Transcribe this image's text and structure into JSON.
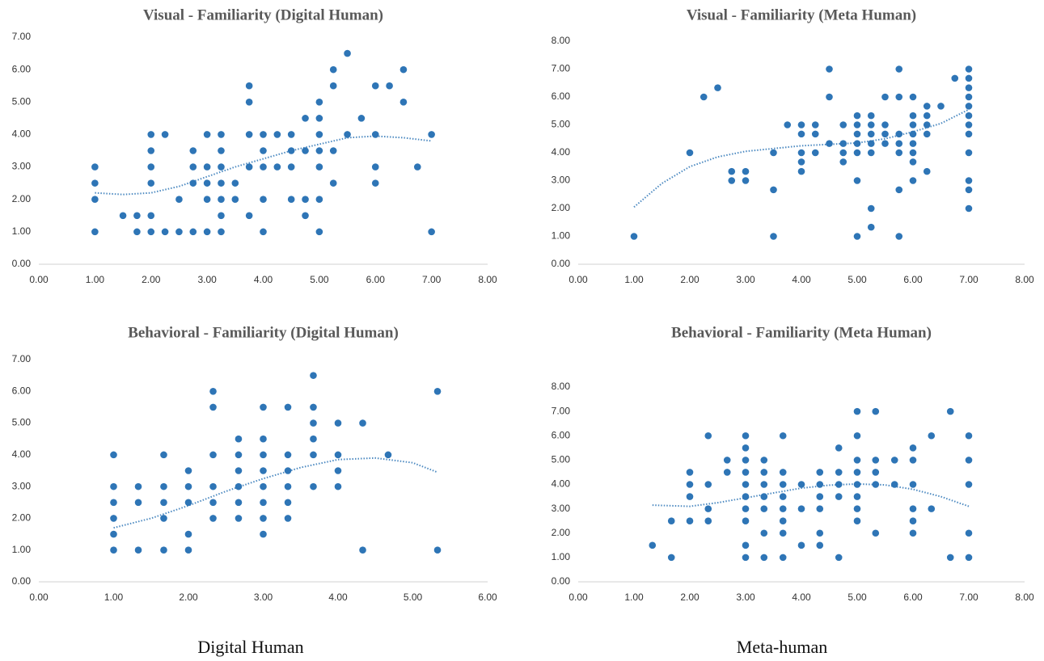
{
  "chart_data": [
    {
      "type": "scatter",
      "title": "Visual - Familiarity (Digital Human)",
      "color": "#2e75b6",
      "x": [
        1,
        1,
        1,
        1,
        1.5,
        1.75,
        1.75,
        2,
        2,
        2,
        2,
        2,
        2,
        2.25,
        2.25,
        2.5,
        2.5,
        2.75,
        2.75,
        2.75,
        2.75,
        3,
        3,
        3,
        3,
        3,
        3.25,
        3.25,
        3.25,
        3.25,
        3.25,
        3.25,
        3.25,
        3.5,
        3.5,
        3.75,
        3.75,
        3.75,
        3.75,
        3.75,
        4,
        4,
        4,
        4,
        4,
        4.25,
        4.25,
        4.5,
        4.5,
        4.5,
        4.5,
        4.75,
        4.75,
        4.75,
        4.75,
        5,
        5,
        5,
        5,
        5,
        5,
        5,
        5.25,
        5.25,
        5.25,
        5.25,
        5.5,
        5.5,
        5.75,
        6,
        6,
        6,
        6,
        6.25,
        6.5,
        6.5,
        6.75,
        7,
        7
      ],
      "values": [
        3,
        2.5,
        2,
        1,
        1.5,
        1.5,
        1,
        4,
        3.5,
        3,
        2.5,
        1.5,
        1,
        4,
        1,
        2,
        1,
        3.5,
        3,
        2.5,
        1,
        4,
        3,
        2.5,
        2,
        1,
        4,
        3.5,
        3,
        2.5,
        2,
        1.5,
        1,
        2.5,
        2,
        5.5,
        5,
        4,
        3,
        1.5,
        4,
        3.5,
        3,
        2,
        1,
        4,
        3,
        4,
        3.5,
        3,
        2,
        4.5,
        3.5,
        2,
        1.5,
        5,
        4.5,
        4,
        3.5,
        3,
        2,
        1,
        6,
        5.5,
        3.5,
        2.5,
        6.5,
        4,
        4.5,
        5.5,
        4,
        3,
        2.5,
        5.5,
        6,
        5,
        3,
        4,
        1
      ],
      "trendline": {
        "x": [
          1,
          1.5,
          2,
          2.5,
          3,
          3.5,
          4,
          4.5,
          5,
          5.5,
          6,
          6.5,
          7
        ],
        "values": [
          2.2,
          2.15,
          2.2,
          2.4,
          2.7,
          3.0,
          3.25,
          3.5,
          3.7,
          3.9,
          3.95,
          3.9,
          3.8
        ]
      },
      "xlim": [
        0,
        8
      ],
      "ylim": [
        0,
        7
      ],
      "xticks": [
        {
          "value": 0,
          "label": "0.00"
        },
        {
          "value": 1,
          "label": "1.00"
        },
        {
          "value": 2,
          "label": "2.00"
        },
        {
          "value": 3,
          "label": "3.00"
        },
        {
          "value": 4,
          "label": "4.00"
        },
        {
          "value": 5,
          "label": "5.00"
        },
        {
          "value": 6,
          "label": "6.00"
        },
        {
          "value": 7,
          "label": "7.00"
        },
        {
          "value": 8,
          "label": "8.00"
        }
      ],
      "yticks": [
        {
          "value": 0,
          "label": "0.00"
        },
        {
          "value": 1,
          "label": "1.00"
        },
        {
          "value": 2,
          "label": "2.00"
        },
        {
          "value": 3,
          "label": "3.00"
        },
        {
          "value": 4,
          "label": "4.00"
        },
        {
          "value": 5,
          "label": "5.00"
        },
        {
          "value": 6,
          "label": "6.00"
        },
        {
          "value": 7,
          "label": "7.00"
        }
      ]
    },
    {
      "type": "scatter",
      "title": "Visual - Familiarity (Meta Human)",
      "color": "#2e75b6",
      "x": [
        1,
        2,
        2.25,
        2.5,
        2.75,
        2.75,
        3,
        3,
        3.5,
        3.5,
        3.5,
        3.75,
        4,
        4,
        4,
        4,
        4,
        4.25,
        4.25,
        4.25,
        4.5,
        4.5,
        4.5,
        4.75,
        4.75,
        4.75,
        4.75,
        5,
        5,
        5,
        5,
        5,
        5,
        5,
        5.25,
        5.25,
        5.25,
        5.25,
        5.25,
        5.25,
        5.25,
        5.5,
        5.5,
        5.5,
        5.5,
        5.75,
        5.75,
        5.75,
        5.75,
        5.75,
        5.75,
        5.75,
        6,
        6,
        6,
        6,
        6,
        6,
        6,
        6,
        6.25,
        6.25,
        6.25,
        6.25,
        6.25,
        6.5,
        6.75,
        7,
        7,
        7,
        7,
        7,
        7,
        7,
        7,
        7,
        7,
        7,
        7
      ],
      "values": [
        1,
        4,
        6,
        6.33,
        3.33,
        3,
        3.33,
        3,
        4,
        2.67,
        1,
        5,
        5,
        4.67,
        4,
        3.67,
        3.33,
        5,
        4.67,
        4,
        7,
        6,
        4.33,
        5,
        4.33,
        4,
        3.67,
        5.33,
        5,
        4.67,
        4.33,
        4,
        3,
        1,
        5.33,
        5,
        4.67,
        4.33,
        4,
        2,
        1.33,
        6,
        5,
        4.67,
        4.33,
        7,
        6,
        4.67,
        4.33,
        4,
        2.67,
        1,
        6,
        5.33,
        5,
        4.67,
        4.33,
        4,
        3.67,
        3,
        5.67,
        5.33,
        5,
        4.67,
        3.33,
        5.67,
        6.67,
        7,
        6.67,
        6.33,
        6,
        5.67,
        5.33,
        5,
        4.67,
        4,
        3,
        2.67,
        2
      ],
      "trendline": {
        "x": [
          1,
          1.5,
          2,
          2.5,
          3,
          3.5,
          4,
          4.5,
          5,
          5.5,
          6,
          6.5,
          7
        ],
        "values": [
          2.05,
          2.9,
          3.5,
          3.85,
          4.05,
          4.15,
          4.25,
          4.3,
          4.35,
          4.5,
          4.75,
          5.05,
          5.55
        ]
      },
      "xlim": [
        0,
        8
      ],
      "ylim": [
        0,
        8
      ],
      "xticks": [
        {
          "value": 0,
          "label": "0.00"
        },
        {
          "value": 1,
          "label": "1.00"
        },
        {
          "value": 2,
          "label": "2.00"
        },
        {
          "value": 3,
          "label": "3.00"
        },
        {
          "value": 4,
          "label": "4.00"
        },
        {
          "value": 5,
          "label": "5.00"
        },
        {
          "value": 6,
          "label": "6.00"
        },
        {
          "value": 7,
          "label": "7.00"
        },
        {
          "value": 8,
          "label": "8.00"
        }
      ],
      "yticks": [
        {
          "value": 0,
          "label": "0.00"
        },
        {
          "value": 1,
          "label": "1.00"
        },
        {
          "value": 2,
          "label": "2.00"
        },
        {
          "value": 3,
          "label": "3.00"
        },
        {
          "value": 4,
          "label": "4.00"
        },
        {
          "value": 5,
          "label": "5.00"
        },
        {
          "value": 6,
          "label": "6.00"
        },
        {
          "value": 7,
          "label": "7.00"
        },
        {
          "value": 8,
          "label": "8.00"
        }
      ]
    },
    {
      "type": "scatter",
      "title": "Behavioral - Familiarity (Digital Human)",
      "color": "#2e75b6",
      "x": [
        1,
        1,
        1,
        1,
        1,
        1,
        1.33,
        1.33,
        1.33,
        1.67,
        1.67,
        1.67,
        1.67,
        1.67,
        2,
        2,
        2,
        2,
        2,
        2.33,
        2.33,
        2.33,
        2.33,
        2.33,
        2.33,
        2.67,
        2.67,
        2.67,
        2.67,
        2.67,
        2.67,
        3,
        3,
        3,
        3,
        3,
        3,
        3,
        3,
        3.33,
        3.33,
        3.33,
        3.33,
        3.33,
        3.33,
        3.67,
        3.67,
        3.67,
        3.67,
        3.67,
        3.67,
        4,
        4,
        4,
        4,
        4.33,
        4.33,
        4.67,
        5.33,
        5.33
      ],
      "values": [
        4,
        3,
        2.5,
        2,
        1.5,
        1,
        3,
        2.5,
        1,
        4,
        3,
        2.5,
        2,
        1,
        3.5,
        3,
        2.5,
        1.5,
        1,
        6,
        5.5,
        4,
        3,
        2.5,
        2,
        4.5,
        4,
        3.5,
        3,
        2.5,
        2,
        5.5,
        4.5,
        4,
        3.5,
        3,
        2.5,
        2,
        1.5,
        5.5,
        4,
        3.5,
        3,
        2.5,
        2,
        6.5,
        5.5,
        5,
        4.5,
        4,
        3,
        5,
        4,
        3.5,
        3,
        5,
        1,
        4,
        6,
        1
      ],
      "trendline": {
        "x": [
          1,
          1.5,
          2,
          2.5,
          3,
          3.5,
          4,
          4.5,
          5,
          5.33
        ],
        "values": [
          1.7,
          2.0,
          2.4,
          2.85,
          3.25,
          3.6,
          3.85,
          3.9,
          3.75,
          3.45
        ]
      },
      "xlim": [
        0,
        6
      ],
      "ylim": [
        0,
        7
      ],
      "xticks": [
        {
          "value": 0,
          "label": "0.00"
        },
        {
          "value": 1,
          "label": "1.00"
        },
        {
          "value": 2,
          "label": "2.00"
        },
        {
          "value": 3,
          "label": "3.00"
        },
        {
          "value": 4,
          "label": "4.00"
        },
        {
          "value": 5,
          "label": "5.00"
        },
        {
          "value": 6,
          "label": "6.00"
        }
      ],
      "yticks": [
        {
          "value": 0,
          "label": "0.00"
        },
        {
          "value": 1,
          "label": "1.00"
        },
        {
          "value": 2,
          "label": "2.00"
        },
        {
          "value": 3,
          "label": "3.00"
        },
        {
          "value": 4,
          "label": "4.00"
        },
        {
          "value": 5,
          "label": "5.00"
        },
        {
          "value": 6,
          "label": "6.00"
        },
        {
          "value": 7,
          "label": "7.00"
        }
      ]
    },
    {
      "type": "scatter",
      "title": "Behavioral - Familiarity (Meta Human)",
      "color": "#2e75b6",
      "x": [
        1.33,
        1.67,
        1.67,
        2,
        2,
        2,
        2,
        2.33,
        2.33,
        2.33,
        2.33,
        2.67,
        2.67,
        3,
        3,
        3,
        3,
        3,
        3,
        3,
        3,
        3,
        3,
        3.33,
        3.33,
        3.33,
        3.33,
        3.33,
        3.33,
        3.33,
        3.67,
        3.67,
        3.67,
        3.67,
        3.67,
        3.67,
        3.67,
        3.67,
        4,
        4,
        4,
        4.33,
        4.33,
        4.33,
        4.33,
        4.33,
        4.33,
        4.67,
        4.67,
        4.67,
        4.67,
        4.67,
        5,
        5,
        5,
        5,
        5,
        5,
        5,
        5,
        5.33,
        5.33,
        5.33,
        5.33,
        5.33,
        5.67,
        5.67,
        6,
        6,
        6,
        6,
        6,
        6,
        6.33,
        6.33,
        6.67,
        6.67,
        7,
        7,
        7,
        7,
        7
      ],
      "values": [
        1.5,
        2.5,
        1,
        4.5,
        4,
        3.5,
        2.5,
        6,
        4,
        3,
        2.5,
        5,
        4.5,
        6,
        5.5,
        5,
        4.5,
        4,
        3.5,
        3,
        2.5,
        1.5,
        1,
        5,
        4.5,
        4,
        3.5,
        3,
        2,
        1,
        6,
        4.5,
        4,
        3.5,
        3,
        2.5,
        2,
        1,
        4,
        3,
        1.5,
        4.5,
        4,
        3.5,
        3,
        2,
        1.5,
        5.5,
        4.5,
        4,
        3.5,
        1,
        7,
        6,
        5,
        4.5,
        4,
        3.5,
        3,
        2.5,
        7,
        5,
        4.5,
        4,
        2,
        5,
        4,
        5.5,
        5,
        4,
        3,
        2.5,
        2,
        6,
        3,
        7,
        1,
        6,
        5,
        4,
        2,
        1
      ],
      "trendline": {
        "x": [
          1.33,
          2,
          2.5,
          3,
          3.5,
          4,
          4.5,
          5,
          5.5,
          6,
          6.5,
          7
        ],
        "values": [
          3.15,
          3.1,
          3.25,
          3.45,
          3.65,
          3.85,
          3.97,
          4.02,
          3.98,
          3.8,
          3.5,
          3.1
        ]
      },
      "xlim": [
        0,
        8
      ],
      "ylim": [
        0,
        8
      ],
      "xticks": [
        {
          "value": 0,
          "label": "0.00"
        },
        {
          "value": 1,
          "label": "1.00"
        },
        {
          "value": 2,
          "label": "2.00"
        },
        {
          "value": 3,
          "label": "3.00"
        },
        {
          "value": 4,
          "label": "4.00"
        },
        {
          "value": 5,
          "label": "5.00"
        },
        {
          "value": 6,
          "label": "6.00"
        },
        {
          "value": 7,
          "label": "7.00"
        },
        {
          "value": 8,
          "label": "8.00"
        }
      ],
      "yticks": [
        {
          "value": 0,
          "label": "0.00"
        },
        {
          "value": 1,
          "label": "1.00"
        },
        {
          "value": 2,
          "label": "2.00"
        },
        {
          "value": 3,
          "label": "3.00"
        },
        {
          "value": 4,
          "label": "4.00"
        },
        {
          "value": 5,
          "label": "5.00"
        },
        {
          "value": 6,
          "label": "6.00"
        },
        {
          "value": 7,
          "label": "7.00"
        },
        {
          "value": 8,
          "label": "8.00"
        }
      ]
    }
  ],
  "captions": [
    "Digital Human",
    "Meta-human"
  ]
}
